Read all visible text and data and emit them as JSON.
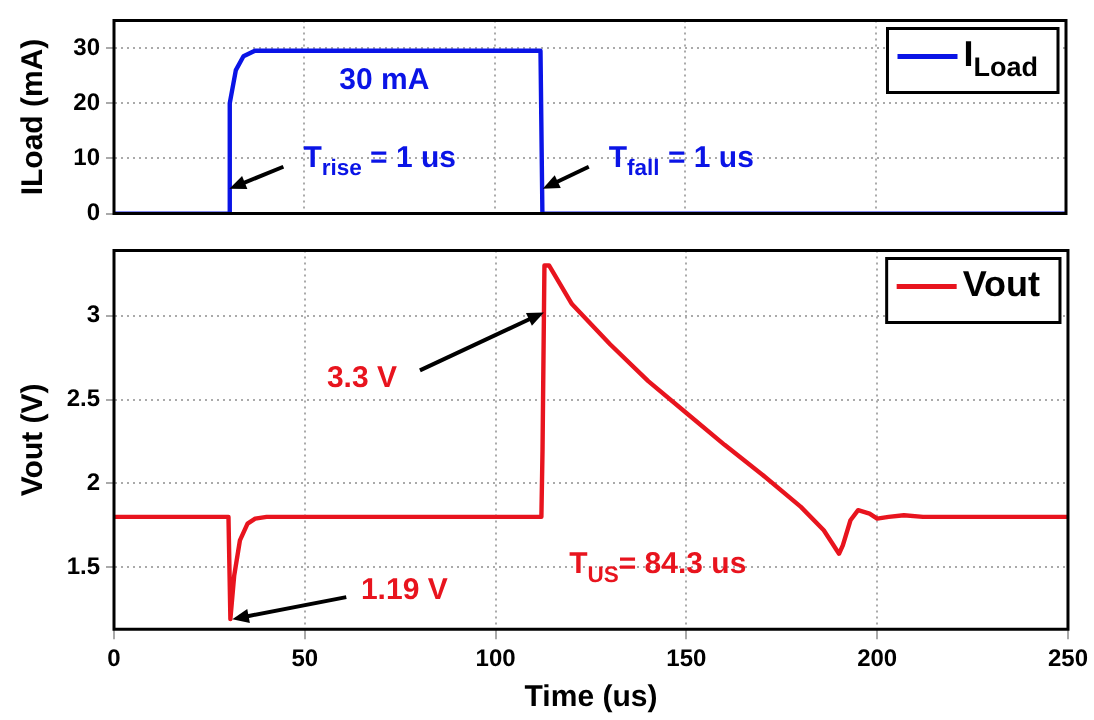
{
  "chart_data": [
    {
      "type": "line",
      "ylabel": "ILoad (mA)",
      "xlim": [
        0,
        250
      ],
      "xticks": [
        0,
        50,
        100,
        150,
        200,
        250
      ],
      "ylim": [
        0,
        35
      ],
      "yticks": [
        0,
        10,
        20,
        30
      ],
      "tick_labels": "y",
      "grid": true,
      "legend": "top right",
      "x": [
        0,
        30,
        30.4,
        32,
        34,
        37,
        112,
        112.5,
        250
      ],
      "series": [
        {
          "name": "I$_{Load}$",
          "color": "#0a14e6",
          "values": [
            0,
            0,
            20,
            26,
            28.5,
            29.5,
            29.5,
            0,
            0
          ]
        }
      ],
      "annotations": [
        {
          "text": "30 mA",
          "x": 71,
          "y": 29.5
        },
        {
          "text": "T$_{rise}$ = 1 us",
          "x": 30.3,
          "y": 4.5
        },
        {
          "text": "T$_{fall}$ = 1 us",
          "x": 112.6,
          "y": 4.5
        }
      ]
    },
    {
      "type": "line",
      "xlabel": "Time (us)",
      "ylabel": "Vout (V)",
      "xlim": [
        0,
        250
      ],
      "xticks": [
        0,
        50,
        100,
        150,
        200,
        250
      ],
      "ylim": [
        1.13,
        3.39
      ],
      "yticks": [
        1.5,
        2,
        2.5,
        3
      ],
      "grid": true,
      "legend": "top right",
      "x": [
        0,
        30,
        30.5,
        31.5,
        33,
        35,
        37,
        40,
        112,
        112.3,
        112.8,
        114,
        120,
        130,
        140,
        150,
        160,
        170,
        180,
        186,
        190,
        191,
        193,
        195,
        198,
        200,
        203,
        207,
        212,
        250
      ],
      "series": [
        {
          "name": "Vout",
          "color": "#e8141e",
          "values": [
            1.8,
            1.8,
            1.19,
            1.45,
            1.66,
            1.76,
            1.79,
            1.8,
            1.8,
            2.2,
            3.3,
            3.3,
            3.07,
            2.83,
            2.61,
            2.42,
            2.23,
            2.05,
            1.86,
            1.72,
            1.58,
            1.63,
            1.78,
            1.84,
            1.82,
            1.79,
            1.8,
            1.81,
            1.8,
            1.8
          ]
        }
      ],
      "annotations": [
        {
          "text": "3.3 V",
          "x": 112.67,
          "y": 3.02
        },
        {
          "text": "1.19 V",
          "x": 31,
          "y": 1.19
        },
        "T$_{US}$= 84.3 us"
      ]
    }
  ]
}
